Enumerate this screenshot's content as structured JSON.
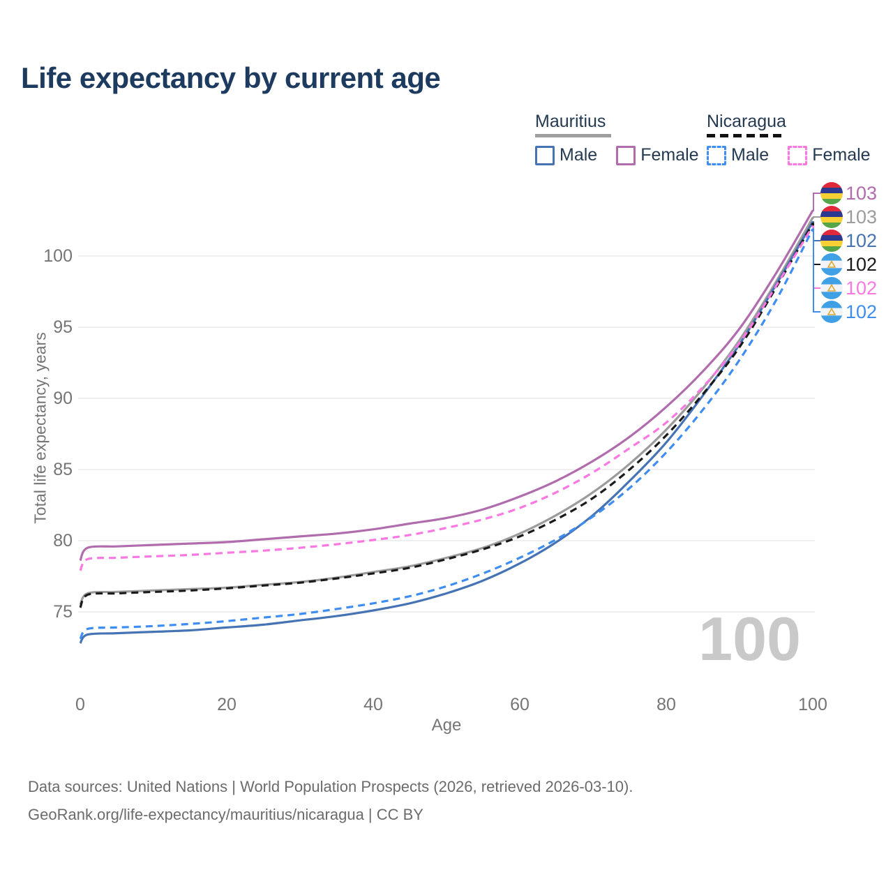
{
  "title": "Life expectancy by current age",
  "legend": {
    "groups": [
      {
        "name": "Mauritius",
        "line_style": "solid",
        "underline_color": "#9E9E9E",
        "items": [
          {
            "label": "Male",
            "color": "#4673B4"
          },
          {
            "label": "Female",
            "color": "#B06CAC"
          }
        ]
      },
      {
        "name": "Nicaragua",
        "line_style": "dashed",
        "underline_color": "#111111",
        "items": [
          {
            "label": "Male",
            "color": "#3E8DF3"
          },
          {
            "label": "Female",
            "color": "#FB78E2"
          }
        ]
      }
    ]
  },
  "y_axis": {
    "label": "Total life expectancy, years",
    "ticks": [
      75,
      80,
      85,
      90,
      95,
      100
    ]
  },
  "x_axis": {
    "label": "Age",
    "ticks": [
      0,
      20,
      40,
      60,
      80,
      100
    ]
  },
  "age_counter_watermark": "100",
  "footer": {
    "line1": "Data sources: United Nations | World Population Prospects (2026, retrieved 2026-03-10).",
    "line2": "GeoRank.org/life-expectancy/mauritius/nicaragua | CC BY"
  },
  "flag_colors": {
    "mauritius": [
      "#E02A3C",
      "#2B3990",
      "#F9CF36",
      "#56A546"
    ],
    "nicaragua": {
      "band": "#3FA0E6",
      "middle": "#F1F3F6",
      "emblem_stroke": "#D9A83C",
      "emblem_fill": "#F6F0DC"
    }
  },
  "chart_data": {
    "type": "line",
    "title": "Life expectancy by current age",
    "xlabel": "Age",
    "ylabel": "Total life expectancy, years",
    "x_range": [
      0,
      100
    ],
    "y_gridlines": [
      75,
      80,
      85,
      90,
      95,
      100
    ],
    "grid": true,
    "legend_position": "top-right",
    "x": [
      0,
      1,
      5,
      10,
      15,
      20,
      25,
      30,
      35,
      40,
      45,
      50,
      55,
      60,
      65,
      70,
      75,
      80,
      85,
      90,
      95,
      100
    ],
    "series": [
      {
        "id": "mauritius-female",
        "name": "Mauritius Female",
        "country": "mauritius",
        "sex": "female",
        "color": "#B06CAC",
        "dashed": false,
        "end_label": "103",
        "values": [
          78.6,
          79.5,
          79.6,
          79.7,
          79.8,
          79.9,
          80.1,
          80.3,
          80.5,
          80.8,
          81.2,
          81.6,
          82.2,
          83.1,
          84.2,
          85.6,
          87.3,
          89.4,
          91.9,
          94.9,
          98.8,
          103.2
        ]
      },
      {
        "id": "mauritius-both",
        "name": "Mauritius Both sexes",
        "country": "mauritius",
        "sex": "both",
        "color": "#9C9C9C",
        "dashed": false,
        "end_label": "103",
        "values": [
          75.5,
          76.3,
          76.4,
          76.5,
          76.6,
          76.7,
          76.9,
          77.1,
          77.4,
          77.8,
          78.2,
          78.8,
          79.5,
          80.5,
          81.8,
          83.4,
          85.4,
          87.8,
          90.7,
          94.1,
          98.2,
          102.7
        ]
      },
      {
        "id": "mauritius-male",
        "name": "Mauritius Male",
        "country": "mauritius",
        "sex": "male",
        "color": "#4673B4",
        "dashed": false,
        "end_label": "102",
        "values": [
          72.8,
          73.4,
          73.5,
          73.6,
          73.7,
          73.9,
          74.1,
          74.4,
          74.7,
          75.1,
          75.6,
          76.3,
          77.2,
          78.4,
          79.9,
          81.8,
          84.2,
          86.9,
          90.2,
          93.8,
          98.0,
          102.4
        ]
      },
      {
        "id": "nicaragua-both",
        "name": "Nicaragua Both sexes",
        "country": "nicaragua",
        "sex": "both",
        "color": "#1A1A1A",
        "dashed": true,
        "end_label": "102",
        "values": [
          75.3,
          76.2,
          76.3,
          76.4,
          76.5,
          76.65,
          76.85,
          77.05,
          77.35,
          77.7,
          78.1,
          78.7,
          79.4,
          80.3,
          81.5,
          83.0,
          85.0,
          87.4,
          90.3,
          93.6,
          97.8,
          102.3
        ]
      },
      {
        "id": "nicaragua-female",
        "name": "Nicaragua Female",
        "country": "nicaragua",
        "sex": "female",
        "color": "#FB78E2",
        "dashed": true,
        "end_label": "102",
        "values": [
          77.9,
          78.7,
          78.8,
          78.9,
          79.0,
          79.15,
          79.3,
          79.5,
          79.75,
          80.05,
          80.4,
          80.9,
          81.5,
          82.3,
          83.4,
          84.8,
          86.5,
          88.3,
          90.8,
          93.9,
          97.9,
          102.1
        ]
      },
      {
        "id": "nicaragua-male",
        "name": "Nicaragua Male",
        "country": "nicaragua",
        "sex": "male",
        "color": "#3E8DF3",
        "dashed": true,
        "end_label": "102",
        "values": [
          73.1,
          73.8,
          73.9,
          74.0,
          74.15,
          74.35,
          74.6,
          74.85,
          75.2,
          75.6,
          76.1,
          76.8,
          77.7,
          78.8,
          80.1,
          81.7,
          83.7,
          86.2,
          89.2,
          92.7,
          96.9,
          101.9
        ]
      }
    ]
  }
}
